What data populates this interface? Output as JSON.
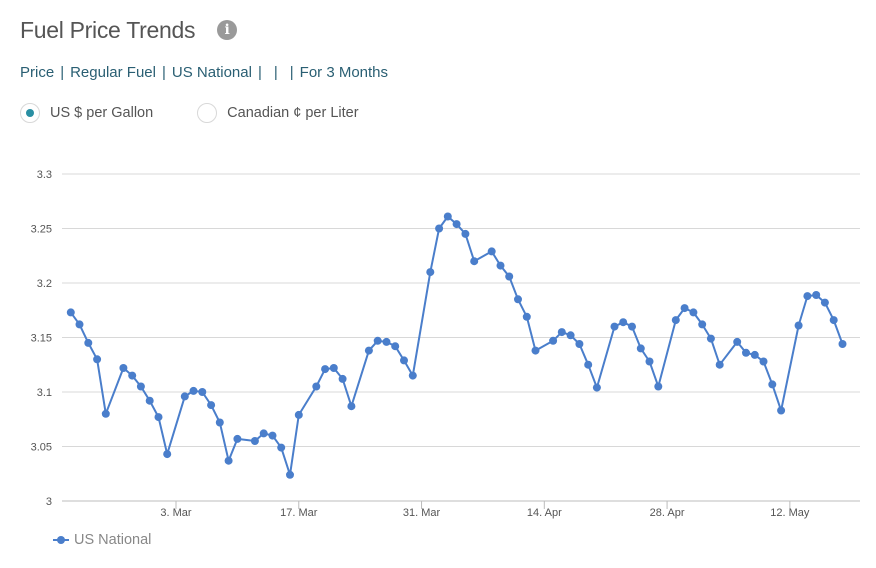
{
  "header": {
    "title": "Fuel Price Trends",
    "info_icon": "info-icon"
  },
  "breadcrumb": [
    "Price",
    "Regular Fuel",
    "US National",
    "",
    "",
    "For 3 Months"
  ],
  "units": {
    "options": [
      {
        "label": "US $ per Gallon",
        "selected": true
      },
      {
        "label": "Canadian ¢ per Liter",
        "selected": false
      }
    ]
  },
  "colors": {
    "series": "#4a7ecb",
    "accent": "#2a8fa3",
    "link": "#2a5f73",
    "grid": "#d8d8d8"
  },
  "chart_data": {
    "type": "line",
    "title": "",
    "xlabel": "",
    "ylabel": "",
    "ylim": [
      3,
      3.3
    ],
    "yticks": [
      3,
      3.05,
      3.1,
      3.15,
      3.2,
      3.25,
      3.3
    ],
    "ytick_labels": [
      "3",
      "3.05",
      "3.1",
      "3.15",
      "3.2",
      "3.25",
      "3.3"
    ],
    "grid": true,
    "legend_position": "bottom-left",
    "xlim": [
      "2019-02-18",
      "2019-05-20"
    ],
    "xticks": [
      "2019-03-03",
      "2019-03-17",
      "2019-03-31",
      "2019-04-14",
      "2019-04-28",
      "2019-05-12"
    ],
    "xtick_labels": [
      "3. Mar",
      "17. Mar",
      "31. Mar",
      "14. Apr",
      "28. Apr",
      "12. May"
    ],
    "series": [
      {
        "name": "US National",
        "x": [
          "2019-02-19",
          "2019-02-20",
          "2019-02-21",
          "2019-02-22",
          "2019-02-23",
          "2019-02-25",
          "2019-02-26",
          "2019-02-27",
          "2019-02-28",
          "2019-03-01",
          "2019-03-02",
          "2019-03-04",
          "2019-03-05",
          "2019-03-06",
          "2019-03-07",
          "2019-03-08",
          "2019-03-09",
          "2019-03-10",
          "2019-03-12",
          "2019-03-13",
          "2019-03-14",
          "2019-03-15",
          "2019-03-16",
          "2019-03-17",
          "2019-03-19",
          "2019-03-20",
          "2019-03-21",
          "2019-03-22",
          "2019-03-23",
          "2019-03-25",
          "2019-03-26",
          "2019-03-27",
          "2019-03-28",
          "2019-03-29",
          "2019-03-30",
          "2019-04-01",
          "2019-04-02",
          "2019-04-03",
          "2019-04-04",
          "2019-04-05",
          "2019-04-06",
          "2019-04-08",
          "2019-04-09",
          "2019-04-10",
          "2019-04-11",
          "2019-04-12",
          "2019-04-13",
          "2019-04-15",
          "2019-04-16",
          "2019-04-17",
          "2019-04-18",
          "2019-04-19",
          "2019-04-20",
          "2019-04-22",
          "2019-04-23",
          "2019-04-24",
          "2019-04-25",
          "2019-04-26",
          "2019-04-27",
          "2019-04-29",
          "2019-04-30",
          "2019-05-01",
          "2019-05-02",
          "2019-05-03",
          "2019-05-04",
          "2019-05-06",
          "2019-05-07",
          "2019-05-08",
          "2019-05-09",
          "2019-05-10",
          "2019-05-11",
          "2019-05-13",
          "2019-05-14",
          "2019-05-15",
          "2019-05-16",
          "2019-05-17",
          "2019-05-18"
        ],
        "values": [
          3.173,
          3.162,
          3.145,
          3.13,
          3.08,
          3.122,
          3.115,
          3.105,
          3.092,
          3.077,
          3.043,
          3.096,
          3.101,
          3.1,
          3.088,
          3.072,
          3.037,
          3.057,
          3.055,
          3.062,
          3.06,
          3.049,
          3.024,
          3.079,
          3.105,
          3.121,
          3.122,
          3.112,
          3.087,
          3.138,
          3.147,
          3.146,
          3.142,
          3.129,
          3.115,
          3.21,
          3.25,
          3.261,
          3.254,
          3.245,
          3.22,
          3.229,
          3.216,
          3.206,
          3.185,
          3.169,
          3.138,
          3.147,
          3.155,
          3.152,
          3.144,
          3.125,
          3.104,
          3.16,
          3.164,
          3.16,
          3.14,
          3.128,
          3.105,
          3.166,
          3.177,
          3.173,
          3.162,
          3.149,
          3.125,
          3.146,
          3.136,
          3.134,
          3.128,
          3.107,
          3.083,
          3.161,
          3.188,
          3.189,
          3.182,
          3.166,
          3.144
        ]
      }
    ]
  }
}
